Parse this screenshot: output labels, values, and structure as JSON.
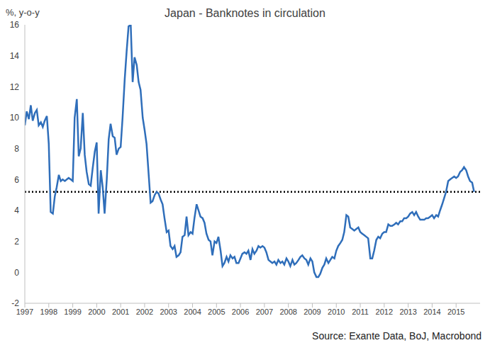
{
  "chart_data": {
    "type": "line",
    "title": "Japan - Banknotes in circulation",
    "ylabel": "%, y-o-y",
    "source": "Source: Exante Data, BoJ, Macrobond",
    "grid": false,
    "reference_line": 5.2,
    "xlim": [
      1997,
      2016
    ],
    "xticks": [
      1997,
      1998,
      1999,
      2000,
      2001,
      2002,
      2003,
      2004,
      2005,
      2006,
      2007,
      2008,
      2009,
      2010,
      2011,
      2012,
      2013,
      2014,
      2015
    ],
    "ylim": [
      -2,
      16
    ],
    "yticks": [
      -2,
      0,
      2,
      4,
      6,
      8,
      10,
      12,
      14,
      16
    ],
    "x": [
      1997,
      1997.08,
      1997.17,
      1997.25,
      1997.33,
      1997.42,
      1997.5,
      1997.58,
      1997.67,
      1997.75,
      1997.83,
      1997.92,
      1998,
      1998.08,
      1998.17,
      1998.25,
      1998.33,
      1998.42,
      1998.5,
      1998.58,
      1998.67,
      1998.75,
      1998.83,
      1998.92,
      1999,
      1999.08,
      1999.17,
      1999.25,
      1999.33,
      1999.42,
      1999.5,
      1999.58,
      1999.67,
      1999.75,
      1999.83,
      1999.92,
      2000,
      2000.08,
      2000.17,
      2000.25,
      2000.33,
      2000.42,
      2000.5,
      2000.58,
      2000.67,
      2000.75,
      2000.83,
      2000.92,
      2001,
      2001.08,
      2001.17,
      2001.25,
      2001.33,
      2001.42,
      2001.5,
      2001.58,
      2001.67,
      2001.75,
      2001.83,
      2001.92,
      2002,
      2002.08,
      2002.17,
      2002.25,
      2002.33,
      2002.42,
      2002.5,
      2002.58,
      2002.67,
      2002.75,
      2002.83,
      2002.92,
      2003,
      2003.08,
      2003.17,
      2003.25,
      2003.33,
      2003.42,
      2003.5,
      2003.58,
      2003.67,
      2003.75,
      2003.83,
      2003.92,
      2004,
      2004.08,
      2004.17,
      2004.25,
      2004.33,
      2004.42,
      2004.5,
      2004.58,
      2004.67,
      2004.75,
      2004.83,
      2004.92,
      2005,
      2005.08,
      2005.17,
      2005.25,
      2005.33,
      2005.42,
      2005.5,
      2005.58,
      2005.67,
      2005.75,
      2005.83,
      2005.92,
      2006,
      2006.08,
      2006.17,
      2006.25,
      2006.33,
      2006.42,
      2006.5,
      2006.58,
      2006.67,
      2006.75,
      2006.83,
      2006.92,
      2007,
      2007.08,
      2007.17,
      2007.25,
      2007.33,
      2007.42,
      2007.5,
      2007.58,
      2007.67,
      2007.75,
      2007.83,
      2007.92,
      2008,
      2008.08,
      2008.17,
      2008.25,
      2008.33,
      2008.42,
      2008.5,
      2008.58,
      2008.67,
      2008.75,
      2008.83,
      2008.92,
      2009,
      2009.08,
      2009.17,
      2009.25,
      2009.33,
      2009.42,
      2009.5,
      2009.58,
      2009.67,
      2009.75,
      2009.83,
      2009.92,
      2010,
      2010.08,
      2010.17,
      2010.25,
      2010.33,
      2010.42,
      2010.5,
      2010.58,
      2010.67,
      2010.75,
      2010.83,
      2010.92,
      2011,
      2011.08,
      2011.17,
      2011.25,
      2011.33,
      2011.42,
      2011.5,
      2011.58,
      2011.67,
      2011.75,
      2011.83,
      2011.92,
      2012,
      2012.08,
      2012.17,
      2012.25,
      2012.33,
      2012.42,
      2012.5,
      2012.58,
      2012.67,
      2012.75,
      2012.83,
      2012.92,
      2013,
      2013.08,
      2013.17,
      2013.25,
      2013.33,
      2013.42,
      2013.5,
      2013.58,
      2013.67,
      2013.75,
      2013.83,
      2013.92,
      2014,
      2014.08,
      2014.17,
      2014.25,
      2014.33,
      2014.42,
      2014.5,
      2014.58,
      2014.67,
      2014.75,
      2014.83,
      2014.92,
      2015,
      2015.08,
      2015.17,
      2015.25,
      2015.33,
      2015.42,
      2015.5,
      2015.58,
      2015.67,
      2015.75
    ],
    "series": [
      {
        "name": "Banknotes in circulation",
        "color": "#2f6eba",
        "values": [
          9.5,
          10.4,
          9.9,
          10.8,
          9.8,
          10.3,
          10.5,
          9.5,
          9.7,
          9.4,
          9.8,
          10.1,
          8.3,
          3.9,
          3.8,
          4.9,
          5.5,
          6.3,
          5.9,
          6.0,
          5.9,
          6.0,
          6.1,
          6.0,
          5.9,
          10.0,
          11.2,
          7.5,
          8.0,
          10.3,
          7.6,
          6.5,
          5.7,
          5.6,
          6.7,
          7.8,
          8.4,
          3.8,
          6.6,
          5.5,
          3.8,
          6.0,
          8.6,
          9.6,
          8.8,
          8.7,
          7.6,
          8.0,
          8.1,
          10.0,
          12.5,
          14.3,
          15.9,
          16.0,
          12.3,
          13.9,
          13.4,
          12.3,
          11.8,
          10.0,
          9.2,
          8.3,
          6.3,
          4.5,
          4.6,
          5.0,
          5.2,
          5.1,
          4.7,
          4.4,
          3.5,
          2.6,
          2.7,
          1.7,
          1.5,
          1.7,
          1.0,
          1.1,
          1.3,
          2.3,
          2.4,
          3.6,
          2.4,
          2.6,
          2.5,
          3.5,
          4.4,
          4.0,
          3.6,
          3.5,
          3.2,
          2.5,
          2.1,
          2.0,
          1.1,
          2.0,
          1.9,
          2.3,
          1.4,
          0.4,
          0.6,
          1.0,
          0.7,
          1.1,
          0.9,
          1.0,
          0.6,
          0.6,
          0.9,
          1.2,
          1.3,
          1.2,
          1.4,
          0.8,
          1.5,
          1.2,
          1.4,
          1.7,
          1.6,
          1.7,
          1.6,
          1.3,
          0.8,
          0.7,
          0.6,
          0.7,
          0.5,
          0.8,
          0.6,
          0.7,
          0.5,
          0.9,
          0.7,
          0.4,
          0.8,
          0.5,
          0.6,
          0.8,
          1.0,
          1.1,
          0.9,
          0.8,
          0.5,
          0.9,
          0.7,
          0.0,
          -0.3,
          -0.3,
          -0.1,
          0.3,
          0.5,
          0.9,
          0.6,
          0.8,
          1.0,
          0.9,
          1.4,
          1.7,
          1.9,
          2.1,
          2.6,
          3.7,
          3.6,
          2.9,
          2.8,
          2.7,
          2.8,
          2.9,
          2.6,
          2.5,
          2.4,
          2.3,
          2.2,
          0.9,
          0.9,
          1.4,
          2.1,
          2.3,
          2.2,
          2.5,
          2.6,
          2.6,
          3.1,
          3.0,
          3.0,
          3.1,
          3.2,
          3.1,
          3.3,
          3.3,
          3.5,
          3.5,
          3.6,
          3.8,
          3.9,
          3.7,
          3.9,
          3.6,
          3.4,
          3.4,
          3.4,
          3.5,
          3.5,
          3.6,
          3.7,
          3.5,
          3.7,
          3.6,
          4.0,
          4.4,
          4.8,
          5.2,
          5.9,
          6.0,
          6.1,
          6.2,
          6.1,
          6.2,
          6.5,
          6.6,
          6.8,
          6.6,
          6.2,
          5.9,
          5.8,
          5.2
        ]
      }
    ]
  }
}
